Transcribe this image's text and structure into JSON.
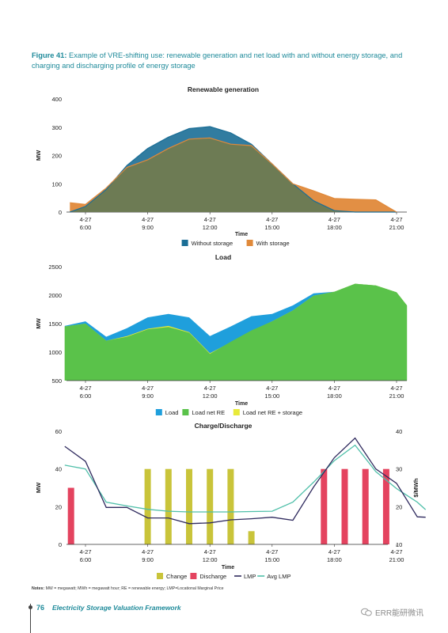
{
  "caption": {
    "figure_label": "Figure 41:",
    "text": "Example of VRE-shifting use: renewable generation and net load with and without energy storage, and charging and discharging profile of energy storage"
  },
  "notes": {
    "label": "Notes:",
    "text": "MW = megawatt; MWh = megawatt hour; RE = renewable energy; LMP=Locational Marginal Price"
  },
  "footer": {
    "page_number": "76",
    "title": "Electricity Storage Valuation Framework",
    "watermark": "ERR能研微讯"
  },
  "colors": {
    "without_storage": "#1b6e96",
    "with_storage": "#e0893a",
    "overlap": "#6d7b54",
    "load": "#1f9fdc",
    "load_net_re": "#5ac24a",
    "load_net_re_storage": "#e8ea3a",
    "change": "#c9c43a",
    "discharge": "#e4435f",
    "lmp": "#2f2a5e",
    "avg_lmp": "#4fbfa9"
  },
  "chart_data": [
    {
      "type": "area",
      "title": "Renewable generation",
      "xlabel": "Time",
      "ylabel": "MW",
      "ylim": [
        0,
        400
      ],
      "yticks": [
        0,
        100,
        200,
        300,
        400
      ],
      "x_hours": [
        5.25,
        6,
        7,
        8,
        9,
        10,
        11,
        12,
        13,
        14,
        15,
        16,
        17,
        18,
        19,
        20,
        21
      ],
      "x_ticks": [
        {
          "hour": 6,
          "label": "4-27\n6:00"
        },
        {
          "hour": 9,
          "label": "4-27\n9:00"
        },
        {
          "hour": 12,
          "label": "4-27\n12:00"
        },
        {
          "hour": 15,
          "label": "4-27\n15:00"
        },
        {
          "hour": 18,
          "label": "4-27\n18:00"
        },
        {
          "hour": 21,
          "label": "4-27\n21:00"
        }
      ],
      "legend": [
        "Without storage",
        "With storage"
      ],
      "legend_placement": "bottom",
      "series": [
        {
          "name": "Without storage",
          "values": [
            0,
            20,
            80,
            165,
            225,
            265,
            295,
            302,
            280,
            240,
            170,
            100,
            40,
            5,
            0,
            0,
            0
          ]
        },
        {
          "name": "With storage",
          "values": [
            33,
            27,
            85,
            158,
            185,
            225,
            258,
            262,
            240,
            235,
            170,
            100,
            75,
            48,
            45,
            43,
            0
          ]
        }
      ]
    },
    {
      "type": "area",
      "title": "Load",
      "xlabel": "Time",
      "ylabel": "MW",
      "ylim": [
        500,
        2500
      ],
      "yticks": [
        500,
        1000,
        1500,
        2000,
        2500
      ],
      "x_hours": [
        5.0,
        6,
        7,
        8,
        9,
        10,
        11,
        12,
        13,
        14,
        15,
        16,
        17,
        18,
        19,
        20,
        21,
        21.5
      ],
      "x_ticks": [
        {
          "hour": 6,
          "label": "4-27\n6:00"
        },
        {
          "hour": 9,
          "label": "4-27\n9:00"
        },
        {
          "hour": 12,
          "label": "4-27\n12:00"
        },
        {
          "hour": 15,
          "label": "4-27\n15:00"
        },
        {
          "hour": 18,
          "label": "4-27\n18:00"
        },
        {
          "hour": 21,
          "label": "4-27\n21:00"
        }
      ],
      "legend": [
        "Load",
        "Load net RE",
        "Load net RE + storage"
      ],
      "legend_placement": "bottom",
      "series": [
        {
          "name": "Load",
          "values": [
            1460,
            1540,
            1270,
            1420,
            1610,
            1670,
            1610,
            1280,
            1450,
            1630,
            1670,
            1820,
            2030,
            2060,
            2200,
            2170,
            2050,
            1820
          ]
        },
        {
          "name": "Load net RE",
          "values": [
            1450,
            1500,
            1200,
            1270,
            1400,
            1440,
            1340,
            970,
            1180,
            1380,
            1540,
            1730,
            1990,
            2060,
            2200,
            2170,
            2050,
            1820
          ]
        },
        {
          "name": "Load net RE + storage",
          "values": [
            1450,
            1500,
            1200,
            1280,
            1410,
            1460,
            1350,
            980,
            1170,
            1370,
            1540,
            1730,
            1990,
            2060,
            2200,
            2170,
            2050,
            1820
          ]
        }
      ]
    },
    {
      "type": "bar",
      "title": "Charge/Discharge",
      "xlabel": "Time",
      "ylabel": "MW",
      "y2label": "$/MWh",
      "ylim": [
        0,
        60
      ],
      "yticks": [
        0,
        20,
        40,
        60
      ],
      "y2lim": [
        10,
        40
      ],
      "y2ticks": [
        10,
        20,
        30,
        40
      ],
      "x_ticks": [
        {
          "hour": 6,
          "label": "4-27\n6:00"
        },
        {
          "hour": 9,
          "label": "4-27\n9:00"
        },
        {
          "hour": 12,
          "label": "4-27\n12:00"
        },
        {
          "hour": 15,
          "label": "4-27\n15:00"
        },
        {
          "hour": 18,
          "label": "4-27\n18:00"
        },
        {
          "hour": 21,
          "label": "4-27\n21:00"
        }
      ],
      "legend": [
        "Change",
        "Discharge",
        "LMP",
        "Avg LMP"
      ],
      "legend_placement": "bottom",
      "bars": [
        {
          "series": "Discharge",
          "hour": 5.3,
          "value": 30
        },
        {
          "series": "Change",
          "hour": 9.0,
          "value": 40
        },
        {
          "series": "Change",
          "hour": 10.0,
          "value": 40
        },
        {
          "series": "Change",
          "hour": 11.0,
          "value": 40
        },
        {
          "series": "Change",
          "hour": 12.0,
          "value": 40
        },
        {
          "series": "Change",
          "hour": 13.0,
          "value": 40
        },
        {
          "series": "Change",
          "hour": 14.0,
          "value": 7
        },
        {
          "series": "Discharge",
          "hour": 17.5,
          "value": 40
        },
        {
          "series": "Discharge",
          "hour": 18.5,
          "value": 40
        },
        {
          "series": "Discharge",
          "hour": 19.5,
          "value": 40
        },
        {
          "series": "Discharge",
          "hour": 20.5,
          "value": 40
        }
      ],
      "x_hours": [
        5.0,
        6,
        7,
        8,
        9,
        10,
        11,
        12,
        13,
        14,
        15,
        16,
        17,
        18,
        19,
        20,
        21,
        22,
        22.4
      ],
      "series": [
        {
          "name": "LMP",
          "values": [
            36,
            32,
            19.8,
            19.8,
            17,
            17,
            15.5,
            15.7,
            16.5,
            16.8,
            17.2,
            16.4,
            25.2,
            33,
            38.2,
            30,
            26.2,
            17.3,
            17.2
          ]
        },
        {
          "name": "Avg LMP",
          "values": [
            31,
            30,
            21.2,
            20.2,
            19.3,
            18.8,
            18.6,
            18.6,
            18.6,
            18.7,
            18.8,
            21.2,
            26.5,
            32.2,
            36.3,
            29.3,
            24.8,
            21.2,
            19.2
          ]
        }
      ]
    }
  ]
}
